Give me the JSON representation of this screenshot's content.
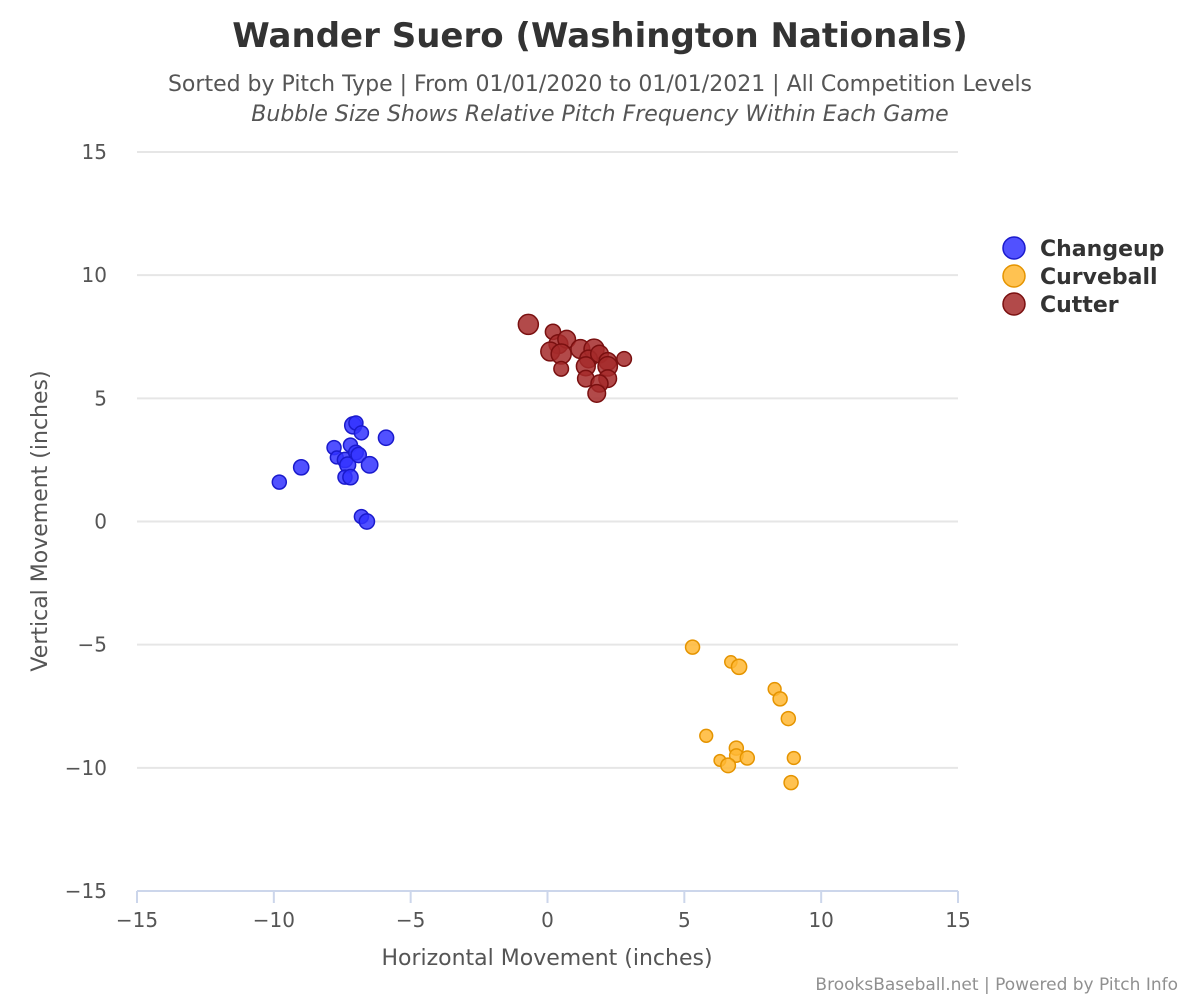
{
  "chart_data": {
    "type": "scatter",
    "title": "Wander Suero (Washington Nationals)",
    "subtitle": "Sorted by Pitch Type | From 01/01/2020 to 01/01/2021 | All Competition Levels",
    "subtitle2": "Bubble Size Shows Relative Pitch Frequency Within Each Game",
    "xlabel": "Horizontal Movement (inches)",
    "ylabel": "Vertical Movement (inches)",
    "xlim": [
      -15,
      15
    ],
    "ylim": [
      -15,
      15
    ],
    "x_ticks": [
      "−15",
      "−10",
      "−5",
      "0",
      "5",
      "10",
      "15"
    ],
    "y_ticks": [
      "15",
      "10",
      "5",
      "0",
      "−5",
      "−10",
      "−15"
    ],
    "x_tick_values": [
      -15,
      -10,
      -5,
      0,
      5,
      10,
      15
    ],
    "y_tick_values": [
      15,
      10,
      5,
      0,
      -5,
      -10,
      -15
    ],
    "grid": "horizontal",
    "legend_position": "right",
    "credit": "BrooksBaseball.net | Powered by Pitch Info",
    "series": [
      {
        "name": "Changeup",
        "color": "#3333ff",
        "stroke": "#1a1acc",
        "points": [
          {
            "x": -9.8,
            "y": 1.6,
            "size": 0.5
          },
          {
            "x": -9.0,
            "y": 2.2,
            "size": 0.6
          },
          {
            "x": -7.8,
            "y": 3.0,
            "size": 0.5
          },
          {
            "x": -7.7,
            "y": 2.6,
            "size": 0.4
          },
          {
            "x": -7.2,
            "y": 3.1,
            "size": 0.5
          },
          {
            "x": -7.1,
            "y": 3.9,
            "size": 0.75
          },
          {
            "x": -7.0,
            "y": 4.0,
            "size": 0.5
          },
          {
            "x": -6.8,
            "y": 3.6,
            "size": 0.5
          },
          {
            "x": -5.9,
            "y": 3.4,
            "size": 0.6
          },
          {
            "x": -7.4,
            "y": 2.5,
            "size": 0.6
          },
          {
            "x": -7.3,
            "y": 2.3,
            "size": 0.65
          },
          {
            "x": -7.0,
            "y": 2.8,
            "size": 0.55
          },
          {
            "x": -6.9,
            "y": 2.7,
            "size": 0.6
          },
          {
            "x": -6.5,
            "y": 2.3,
            "size": 0.7
          },
          {
            "x": -7.4,
            "y": 1.8,
            "size": 0.5
          },
          {
            "x": -7.2,
            "y": 1.8,
            "size": 0.6
          },
          {
            "x": -6.8,
            "y": 0.2,
            "size": 0.5
          },
          {
            "x": -6.6,
            "y": 0.0,
            "size": 0.6
          }
        ]
      },
      {
        "name": "Curveball",
        "color": "#ffb733",
        "stroke": "#e59400",
        "points": [
          {
            "x": 5.3,
            "y": -5.1,
            "size": 0.5
          },
          {
            "x": 6.7,
            "y": -5.7,
            "size": 0.35
          },
          {
            "x": 7.0,
            "y": -5.9,
            "size": 0.6
          },
          {
            "x": 8.3,
            "y": -6.8,
            "size": 0.4
          },
          {
            "x": 8.5,
            "y": -7.2,
            "size": 0.5
          },
          {
            "x": 8.8,
            "y": -8.0,
            "size": 0.5
          },
          {
            "x": 5.8,
            "y": -8.7,
            "size": 0.4
          },
          {
            "x": 6.9,
            "y": -9.2,
            "size": 0.5
          },
          {
            "x": 6.9,
            "y": -9.5,
            "size": 0.45
          },
          {
            "x": 7.3,
            "y": -9.6,
            "size": 0.5
          },
          {
            "x": 6.3,
            "y": -9.7,
            "size": 0.3
          },
          {
            "x": 6.6,
            "y": -9.9,
            "size": 0.55
          },
          {
            "x": 9.0,
            "y": -9.6,
            "size": 0.4
          },
          {
            "x": 8.9,
            "y": -10.6,
            "size": 0.5
          }
        ]
      },
      {
        "name": "Cutter",
        "color": "#a52a2a",
        "stroke": "#7a1010",
        "points": [
          {
            "x": -0.7,
            "y": 8.0,
            "size": 1.0
          },
          {
            "x": 0.2,
            "y": 7.7,
            "size": 0.6
          },
          {
            "x": 0.4,
            "y": 7.2,
            "size": 0.9
          },
          {
            "x": 0.7,
            "y": 7.4,
            "size": 0.8
          },
          {
            "x": 0.1,
            "y": 6.9,
            "size": 0.9
          },
          {
            "x": 0.5,
            "y": 6.8,
            "size": 1.0
          },
          {
            "x": 0.5,
            "y": 6.2,
            "size": 0.55
          },
          {
            "x": 1.2,
            "y": 7.0,
            "size": 0.9
          },
          {
            "x": 1.7,
            "y": 7.0,
            "size": 1.0
          },
          {
            "x": 1.5,
            "y": 6.6,
            "size": 0.8
          },
          {
            "x": 1.9,
            "y": 6.8,
            "size": 0.8
          },
          {
            "x": 2.2,
            "y": 6.5,
            "size": 0.8
          },
          {
            "x": 2.2,
            "y": 6.3,
            "size": 0.95
          },
          {
            "x": 1.4,
            "y": 6.3,
            "size": 0.9
          },
          {
            "x": 2.8,
            "y": 6.6,
            "size": 0.55
          },
          {
            "x": 1.4,
            "y": 5.8,
            "size": 0.7
          },
          {
            "x": 2.2,
            "y": 5.8,
            "size": 0.8
          },
          {
            "x": 1.9,
            "y": 5.6,
            "size": 0.75
          },
          {
            "x": 1.8,
            "y": 5.2,
            "size": 0.8
          }
        ]
      }
    ]
  }
}
